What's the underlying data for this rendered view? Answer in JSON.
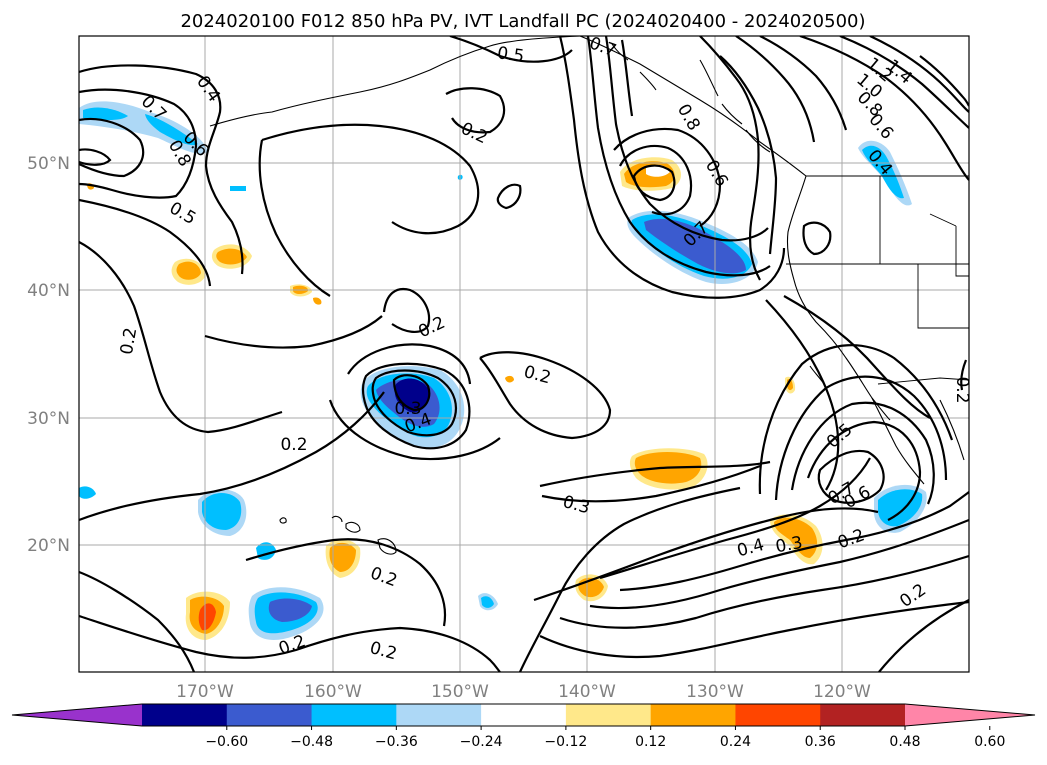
{
  "title": "2024020100 F012 850 hPa PV, IVT Landfall PC (2024020400 - 2024020500)",
  "map": {
    "lon_ticks": [
      "170°W",
      "160°W",
      "150°W",
      "140°W",
      "130°W",
      "120°W"
    ],
    "lat_ticks": [
      "50°N",
      "40°N",
      "30°N",
      "20°N"
    ],
    "gridlines": true,
    "contour_color": "#000000"
  },
  "contour_labels": [
    "0.5",
    "0.7",
    "1.4",
    "1.2",
    "1.0",
    "0.8",
    "0.6",
    "0.4",
    "0.2",
    "0.8",
    "0.6",
    "0.8",
    "0.7",
    "0.6",
    "0.7",
    "0.5",
    "0.2",
    "0.2",
    "0.2",
    "0.3",
    "0.4",
    "0.2",
    "0.3",
    "0.5",
    "0.7",
    "0.6",
    "0.4",
    "0.3",
    "0.2",
    "0.2",
    "0.2",
    "0.2",
    "0.2",
    "0.2",
    "0.4"
  ],
  "colorbar": {
    "tick_labels": [
      "−0.60",
      "−0.48",
      "−0.36",
      "−0.24",
      "−0.12",
      "0.12",
      "0.24",
      "0.36",
      "0.48",
      "0.60"
    ],
    "colors": [
      "#9932cc",
      "#00008b",
      "#3b5bcf",
      "#00bfff",
      "#add8f6",
      "#ffffff",
      "#ffe88a",
      "#ffa500",
      "#ff4500",
      "#b22222",
      "#ff85a8"
    ],
    "extend": "both"
  }
}
